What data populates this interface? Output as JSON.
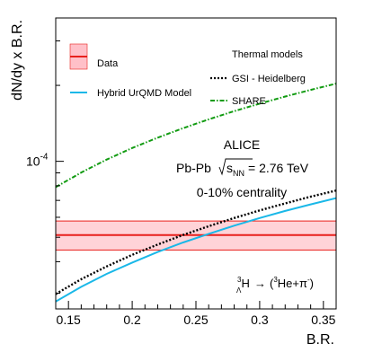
{
  "chart_data": {
    "type": "line",
    "xlabel": "B.R.",
    "ylabel": "dN/dy x B.R.",
    "xlim": [
      0.14,
      0.36
    ],
    "ylog": true,
    "ylim": [
      2.6e-05,
      0.00037
    ],
    "x_ticks": [
      {
        "v": 0.15,
        "label": "0.15"
      },
      {
        "v": 0.2,
        "label": "0.2"
      },
      {
        "v": 0.25,
        "label": "0.25"
      },
      {
        "v": 0.3,
        "label": "0.3"
      },
      {
        "v": 0.35,
        "label": "0.35"
      }
    ],
    "y_tick_labels": [
      {
        "v": 0.0001,
        "base": "10",
        "exp": "-4"
      }
    ],
    "data_band": {
      "name": "Data",
      "value": 5.1e-05,
      "low": 4.45e-05,
      "high": 5.8e-05,
      "line_color": "#e8201c",
      "fill_color": "#ffc0c8"
    },
    "series": [
      {
        "name": "SHARE",
        "group": "Thermal models",
        "color": "#119b11",
        "style": "dash-dot",
        "x": [
          0.14,
          0.16,
          0.18,
          0.2,
          0.22,
          0.24,
          0.26,
          0.28,
          0.3,
          0.32,
          0.34,
          0.36
        ],
        "y": [
          7.9e-05,
          9.03e-05,
          0.0001016,
          0.0001129,
          0.0001241,
          0.0001354,
          0.0001467,
          0.000158,
          0.0001693,
          0.0001806,
          0.0001919,
          0.0002032
        ]
      },
      {
        "name": "GSI - Heidelberg",
        "group": "Thermal models",
        "color": "#000000",
        "style": "dotted",
        "x": [
          0.14,
          0.16,
          0.18,
          0.2,
          0.22,
          0.24,
          0.26,
          0.28,
          0.3,
          0.32,
          0.34,
          0.36
        ],
        "y": [
          2.98e-05,
          3.41e-05,
          3.83e-05,
          4.26e-05,
          4.68e-05,
          5.11e-05,
          5.53e-05,
          5.96e-05,
          6.39e-05,
          6.81e-05,
          7.24e-05,
          7.66e-05
        ]
      },
      {
        "name": "Hybrid UrQMD Model",
        "color": "#1ab8e8",
        "style": "solid",
        "x": [
          0.14,
          0.16,
          0.18,
          0.2,
          0.22,
          0.24,
          0.26,
          0.28,
          0.3,
          0.32,
          0.34,
          0.36
        ],
        "y": [
          2.78e-05,
          3.18e-05,
          3.58e-05,
          3.97e-05,
          4.37e-05,
          4.77e-05,
          5.16e-05,
          5.56e-05,
          5.96e-05,
          6.36e-05,
          6.75e-05,
          7.15e-05
        ]
      }
    ],
    "legend": {
      "placement": "top",
      "group_title": "Thermal models",
      "items": [
        {
          "label": "Data"
        },
        {
          "label": "Hybrid UrQMD Model"
        },
        {
          "label": "GSI - Heidelberg"
        },
        {
          "label": "SHARE"
        }
      ]
    },
    "annotations": {
      "experiment": "ALICE",
      "system": "Pb-Pb",
      "energy_label": "s",
      "energy_sub": "NN",
      "energy_value": "= 2.76 TeV",
      "centrality": "0-10% centrality",
      "decay": {
        "mass": "3",
        "sub": "Λ",
        "particle": "H",
        "arrow": "→",
        "he_mass": "3",
        "he": "He+π",
        "pi_charge": "-"
      }
    },
    "grid": false
  }
}
